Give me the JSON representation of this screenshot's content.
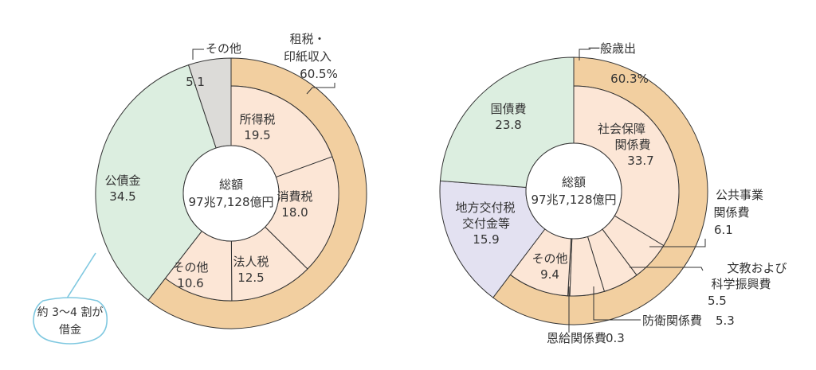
{
  "colors": {
    "outer_ring": "#F2CFA0",
    "inner_slice": "#FCE6D6",
    "debt": "#DCEEE0",
    "other_grey": "#DCDBD8",
    "local": "#E3E1F1",
    "center": "#FFFFFF",
    "stroke": "#333333",
    "callout": "#7FC8E0"
  },
  "chart_data": [
    {
      "type": "pie",
      "center_label": [
        "総額",
        "97兆7,128億円"
      ],
      "outer_groups": [
        {
          "label": [
            "租税・",
            "印紙収入"
          ],
          "value_label": "60.5%",
          "value": 60.5
        }
      ],
      "slices": [
        {
          "label": "所得税",
          "value": 19.5,
          "group": "租税・印紙収入"
        },
        {
          "label": "消費税",
          "value": 18.0,
          "group": "租税・印紙収入"
        },
        {
          "label": "法人税",
          "value": 12.5,
          "group": "租税・印紙収入"
        },
        {
          "label": "その他",
          "value": 10.6,
          "group": "租税・印紙収入"
        },
        {
          "label": "公債金",
          "value": 34.5
        },
        {
          "label": "その他",
          "value": 5.1
        }
      ],
      "value_labels": [
        "19.5",
        "18.0",
        "12.5",
        "10.6",
        "34.5",
        "5.1"
      ],
      "annotation": [
        "約 3〜4 割が",
        "借金"
      ]
    },
    {
      "type": "pie",
      "center_label": [
        "総額",
        "97兆7,128億円"
      ],
      "outer_groups": [
        {
          "label": [
            "一般歳出"
          ],
          "value_label": "60.3%",
          "value": 60.3
        }
      ],
      "slices": [
        {
          "label": [
            "社会保障",
            "関係費"
          ],
          "value": 33.7,
          "group": "一般歳出"
        },
        {
          "label": [
            "公共事業",
            "関係費"
          ],
          "value": 6.1,
          "group": "一般歳出"
        },
        {
          "label": [
            "文教および",
            "科学振興費"
          ],
          "value": 5.5,
          "group": "一般歳出"
        },
        {
          "label": [
            "防衛関係費"
          ],
          "value": 5.3,
          "group": "一般歳出"
        },
        {
          "label": [
            "恩給関係費"
          ],
          "value": 0.3,
          "group": "一般歳出"
        },
        {
          "label": [
            "その他"
          ],
          "value": 9.4,
          "group": "一般歳出"
        },
        {
          "label": [
            "地方交付税",
            "交付金等"
          ],
          "value": 15.9
        },
        {
          "label": [
            "国債費"
          ],
          "value": 23.8
        }
      ],
      "value_labels": [
        "33.7",
        "6.1",
        "5.5",
        "5.3",
        "0.3",
        "9.4",
        "15.9",
        "23.8"
      ]
    }
  ]
}
